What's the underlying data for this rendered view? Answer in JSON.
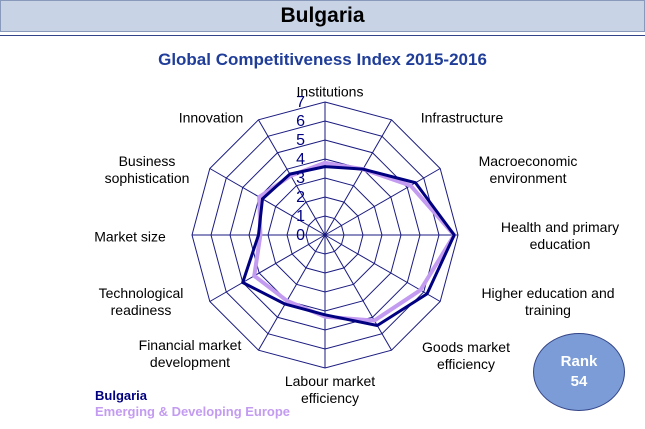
{
  "header": {
    "title": "Bulgaria"
  },
  "chart_data": {
    "type": "radar",
    "title": "Global Competitiveness Index 2015-2016",
    "categories": [
      "Institutions",
      "Infrastructure",
      "Macroeconomic environment",
      "Health and primary education",
      "Higher education and training",
      "Goods market efficiency",
      "Labour market efficiency",
      "Financial market development",
      "Technological readiness",
      "Market size",
      "Business sophistication",
      "Innovation"
    ],
    "series": [
      {
        "name": "Bulgaria",
        "color": "#000080",
        "values": [
          3.6,
          4.0,
          5.5,
          6.8,
          6.2,
          5.5,
          4.2,
          4.2,
          5.0,
          3.5,
          3.8,
          3.7
        ]
      },
      {
        "name": "Emerging & Developing Europe",
        "color": "#c39bf0",
        "values": [
          3.8,
          4.0,
          5.2,
          6.8,
          5.8,
          5.2,
          4.3,
          4.0,
          4.3,
          3.4,
          4.0,
          3.6
        ]
      }
    ],
    "ylim": [
      0,
      7
    ],
    "yticks": [
      0,
      1,
      2,
      3,
      4,
      5,
      6,
      7
    ],
    "grid": true
  },
  "rank": {
    "label": "Rank",
    "value": "54"
  }
}
